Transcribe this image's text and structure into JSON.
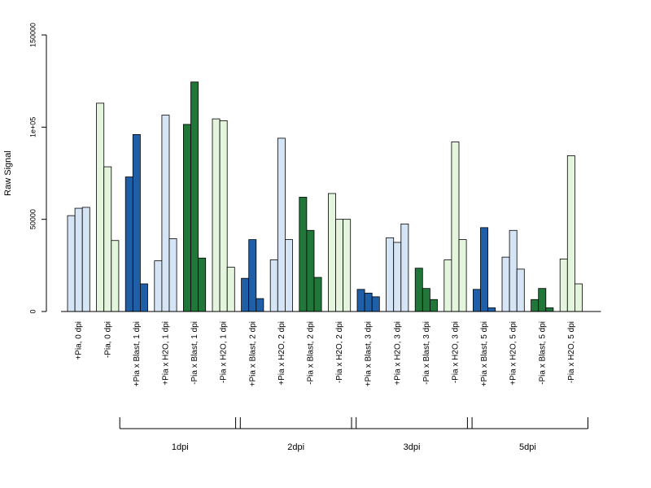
{
  "chart_data": {
    "type": "bar",
    "ylabel": "Raw Signal",
    "xlabel": "",
    "ylim": [
      0,
      150000
    ],
    "y_ticks": [
      {
        "value": 0,
        "label": "0"
      },
      {
        "value": 50000,
        "label": "50000"
      },
      {
        "value": 100000,
        "label": "1e+05"
      },
      {
        "value": 150000,
        "label": "150000"
      }
    ],
    "colors": {
      "light_blue": "#d6e5f5",
      "dark_blue": "#1f5fa8",
      "light_green": "#e4f5dd",
      "dark_green": "#21773a",
      "outline": "#000000"
    },
    "categories": [
      {
        "label": "+Pia, 0 dpi",
        "color": "light_blue",
        "values": [
          52000,
          56000,
          56500
        ]
      },
      {
        "label": "-Pia, 0 dpi",
        "color": "light_green",
        "values": [
          113000,
          78500,
          38500
        ]
      },
      {
        "label": "+Pia x Blast, 1 dpi",
        "color": "dark_blue",
        "values": [
          73000,
          96000,
          15000
        ]
      },
      {
        "label": "+Pia x H2O, 1 dpi",
        "color": "light_blue",
        "values": [
          27500,
          106500,
          39500
        ]
      },
      {
        "label": "-Pia x Blast, 1 dpi",
        "color": "dark_green",
        "values": [
          101500,
          124500,
          29000
        ]
      },
      {
        "label": "-Pia x H2O, 1 dpi",
        "color": "light_green",
        "values": [
          104500,
          103500,
          24000
        ]
      },
      {
        "label": "+Pia x Blast, 2 dpi",
        "color": "dark_blue",
        "values": [
          18000,
          39000,
          7000
        ]
      },
      {
        "label": "+Pia x H2O, 2 dpi",
        "color": "light_blue",
        "values": [
          28000,
          94000,
          39000
        ]
      },
      {
        "label": "-Pia x Blast, 2 dpi",
        "color": "dark_green",
        "values": [
          62000,
          44000,
          18500
        ]
      },
      {
        "label": "-Pia x H2O, 2 dpi",
        "color": "light_green",
        "values": [
          64000,
          50000,
          50000
        ]
      },
      {
        "label": "+Pia x Blast, 3 dpi",
        "color": "dark_blue",
        "values": [
          12000,
          10000,
          8000
        ]
      },
      {
        "label": "+Pia x H2O, 3 dpi",
        "color": "light_blue",
        "values": [
          40000,
          37500,
          47500
        ]
      },
      {
        "label": "-Pia x Blast, 3 dpi",
        "color": "dark_green",
        "values": [
          23500,
          12500,
          6500
        ]
      },
      {
        "label": "-Pia x H2O, 3 dpi",
        "color": "light_green",
        "values": [
          28000,
          92000,
          39000
        ]
      },
      {
        "label": "+Pia x Blast, 5 dpi",
        "color": "dark_blue",
        "values": [
          12000,
          45500,
          2000
        ]
      },
      {
        "label": "+Pia x H2O, 5 dpi",
        "color": "light_blue",
        "values": [
          29500,
          44000,
          23000
        ]
      },
      {
        "label": "-Pia x Blast, 5 dpi",
        "color": "dark_green",
        "values": [
          6500,
          12500,
          2000
        ]
      },
      {
        "label": "-Pia x H2O, 5 dpi",
        "color": "light_green",
        "values": [
          28500,
          84500,
          15000
        ]
      }
    ],
    "groups": [
      {
        "label": "1dpi",
        "from": 2,
        "to": 5
      },
      {
        "label": "2dpi",
        "from": 6,
        "to": 9
      },
      {
        "label": "3dpi",
        "from": 10,
        "to": 13
      },
      {
        "label": "5dpi",
        "from": 14,
        "to": 17
      }
    ]
  }
}
